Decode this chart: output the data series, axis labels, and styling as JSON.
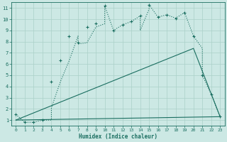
{
  "title": "",
  "xlabel": "Humidex (Indice chaleur)",
  "bg_color": "#cce8e4",
  "line_color": "#1a6e60",
  "grid_color": "#aad0c8",
  "xlim": [
    -0.5,
    23.5
  ],
  "ylim": [
    0.5,
    11.5
  ],
  "xticks": [
    0,
    1,
    2,
    3,
    4,
    5,
    6,
    7,
    8,
    9,
    10,
    11,
    12,
    13,
    14,
    15,
    16,
    17,
    18,
    19,
    20,
    21,
    22,
    23
  ],
  "yticks": [
    1,
    2,
    3,
    4,
    5,
    6,
    7,
    8,
    9,
    10,
    11
  ],
  "curve1_x": [
    0,
    1,
    2,
    3,
    4,
    4,
    5,
    6,
    7,
    7,
    8,
    9,
    10,
    10,
    11,
    12,
    13,
    14,
    14,
    15,
    15,
    16,
    17,
    18,
    19,
    20,
    21,
    21,
    22,
    23
  ],
  "curve1_y": [
    1.5,
    0.8,
    0.8,
    1.0,
    1.0,
    2.1,
    4.4,
    6.3,
    8.5,
    7.8,
    7.9,
    9.3,
    9.6,
    11.2,
    9.0,
    9.5,
    9.8,
    10.3,
    9.0,
    10.9,
    11.3,
    10.2,
    10.4,
    10.1,
    10.6,
    8.5,
    7.4,
    5.0,
    3.3,
    1.3
  ],
  "curve2_x": [
    0,
    20,
    23
  ],
  "curve2_y": [
    1.0,
    7.4,
    1.3
  ],
  "curve3_x": [
    0,
    23
  ],
  "curve3_y": [
    1.0,
    1.3
  ],
  "marker_x": [
    0,
    1,
    2,
    3,
    4,
    5,
    6,
    7,
    8,
    9,
    10,
    11,
    12,
    13,
    14,
    15,
    16,
    17,
    18,
    19,
    20,
    21,
    22,
    23
  ],
  "marker_y": [
    1.5,
    0.8,
    0.8,
    1.0,
    4.4,
    6.3,
    8.5,
    7.9,
    9.3,
    9.6,
    11.2,
    9.0,
    9.5,
    9.8,
    10.3,
    11.3,
    10.2,
    10.4,
    10.1,
    10.6,
    8.5,
    5.0,
    3.3,
    1.3
  ]
}
